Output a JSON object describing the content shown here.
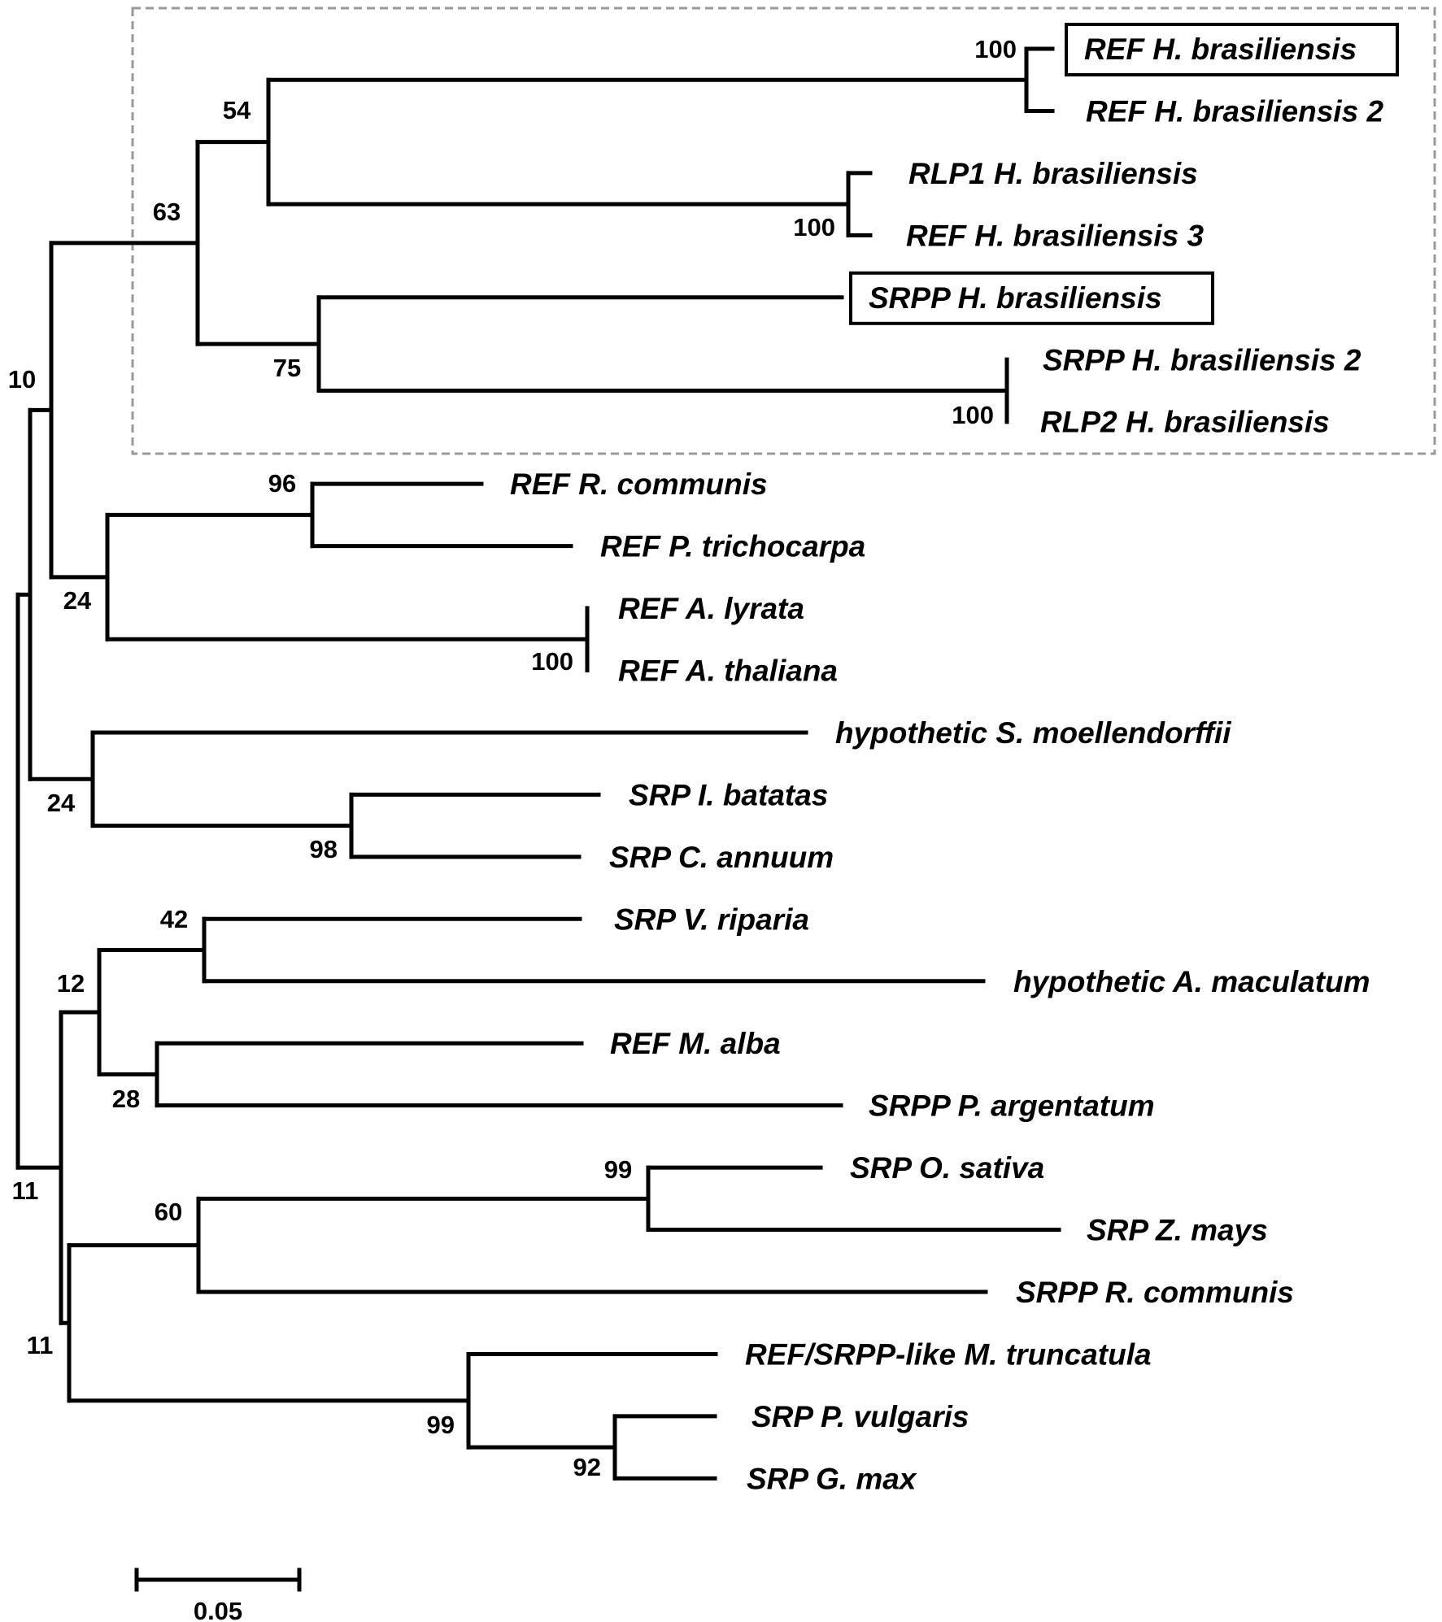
{
  "tree": {
    "name": "root",
    "support": "11",
    "children": [
      {
        "name": "n10",
        "support": "10",
        "children": [
          {
            "name": "n_a",
            "support": "",
            "children": [
              {
                "name": "n63",
                "support": "63",
                "children": [
                  {
                    "name": "n54",
                    "support": "54",
                    "children": [
                      {
                        "name": "n100a",
                        "support": "100",
                        "children": [
                          {
                            "label": "REF H. brasiliensis",
                            "highlight": true
                          },
                          {
                            "label": "REF H. brasiliensis 2"
                          }
                        ]
                      },
                      {
                        "name": "n100b",
                        "support": "100",
                        "children": [
                          {
                            "label": "RLP1 H. brasiliensis"
                          },
                          {
                            "label": "REF H. brasiliensis 3"
                          }
                        ]
                      }
                    ]
                  },
                  {
                    "name": "n75",
                    "support": "75",
                    "children": [
                      {
                        "label": "SRPP H. brasiliensis",
                        "highlight": true
                      },
                      {
                        "name": "n100c",
                        "support": "100",
                        "children": [
                          {
                            "label": "SRPP H. brasiliensis 2"
                          },
                          {
                            "label": "RLP2 H. brasiliensis"
                          }
                        ]
                      }
                    ]
                  }
                ]
              },
              {
                "name": "n24a",
                "support": "24",
                "children": [
                  {
                    "name": "n96",
                    "support": "96",
                    "children": [
                      {
                        "label": "REF R. communis"
                      },
                      {
                        "label": "REF P. trichocarpa"
                      }
                    ]
                  },
                  {
                    "name": "n100d",
                    "support": "100",
                    "children": [
                      {
                        "label": "REF A. lyrata"
                      },
                      {
                        "label": "REF A. thaliana"
                      }
                    ]
                  }
                ]
              }
            ]
          },
          {
            "name": "n24b",
            "support": "24",
            "children": [
              {
                "label": "hypothetic S. moellendorffii"
              },
              {
                "name": "n98",
                "support": "98",
                "children": [
                  {
                    "label": "SRP I. batatas"
                  },
                  {
                    "label": "SRP C. annuum"
                  }
                ]
              }
            ]
          }
        ]
      },
      {
        "name": "n11b",
        "support": "11",
        "children": [
          {
            "name": "n12",
            "support": "12",
            "children": [
              {
                "name": "n42",
                "support": "42",
                "children": [
                  {
                    "label": "SRP V. riparia"
                  },
                  {
                    "label": "hypothetic A. maculatum"
                  }
                ]
              },
              {
                "name": "n28",
                "support": "28",
                "children": [
                  {
                    "label": "REF M. alba"
                  },
                  {
                    "label": "SRPP P. argentatum"
                  }
                ]
              }
            ]
          },
          {
            "name": "n_b",
            "support": "",
            "children": [
              {
                "name": "n60",
                "support": "60",
                "children": [
                  {
                    "name": "n99a",
                    "support": "99",
                    "children": [
                      {
                        "label": "SRP O. sativa"
                      },
                      {
                        "label": "SRP Z. mays"
                      }
                    ]
                  },
                  {
                    "label": "SRPP R. communis"
                  }
                ]
              },
              {
                "name": "n99b",
                "support": "99",
                "children": [
                  {
                    "label": "REF/SRPP-like M. truncatula"
                  },
                  {
                    "name": "n92",
                    "support": "92",
                    "children": [
                      {
                        "label": "SRP P. vulgaris"
                      },
                      {
                        "label": "SRP G. max"
                      }
                    ]
                  }
                ]
              }
            ]
          }
        ]
      }
    ]
  },
  "scale_bar": {
    "label": "0.05"
  },
  "colors": {
    "line": "#000000",
    "group_box": "#9a9a9a"
  }
}
